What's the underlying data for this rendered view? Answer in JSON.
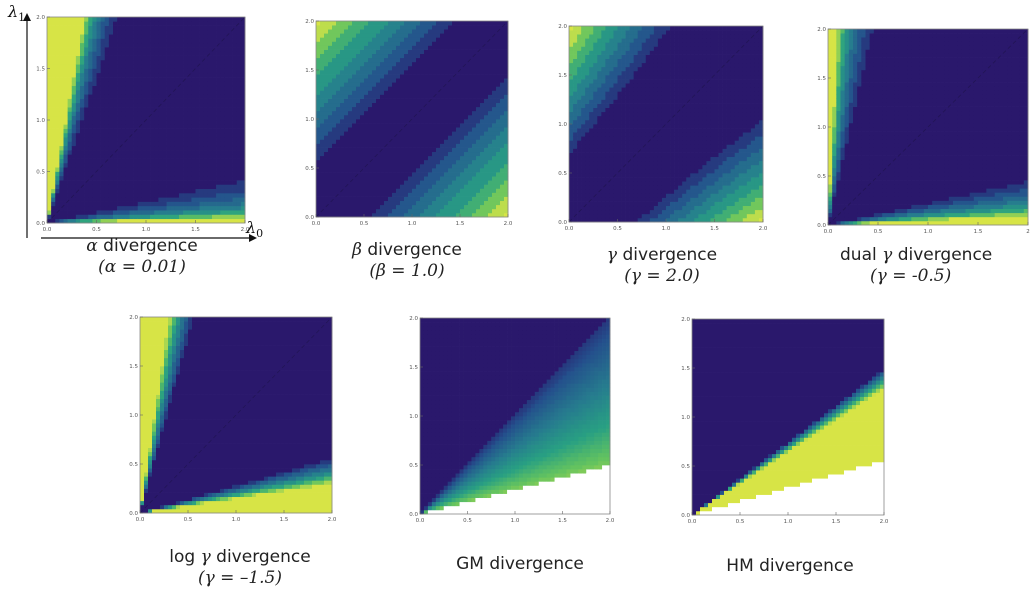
{
  "chart_data": [
    {
      "type": "heatmap",
      "kind": "alpha",
      "title_symbol": "α",
      "title_text": "divergence",
      "param_text": "(α = 0.01)",
      "x_ticks": [
        "0.0",
        "0.5",
        "1.0",
        "1.5",
        "2.0"
      ],
      "y_ticks": [
        "0.0",
        "0.5",
        "1.0",
        "1.5",
        "2.0"
      ],
      "xlim": [
        0,
        2
      ],
      "ylim": [
        0,
        2
      ],
      "xlabel": "λ0",
      "ylabel": "λ1",
      "colormap": "viridis"
    },
    {
      "type": "heatmap",
      "kind": "beta",
      "title_symbol": "β",
      "title_text": "divergence",
      "param_text": "(β = 1.0)",
      "x_ticks": [
        "0.0",
        "0.5",
        "1.0",
        "1.5",
        "2.0"
      ],
      "y_ticks": [
        "0.0",
        "0.5",
        "1.0",
        "1.5",
        "2.0"
      ],
      "xlim": [
        0,
        2
      ],
      "ylim": [
        0,
        2
      ],
      "colormap": "viridis"
    },
    {
      "type": "heatmap",
      "kind": "gamma",
      "title_symbol": "γ",
      "title_text": "divergence",
      "param_text": "(γ = 2.0)",
      "x_ticks": [
        "0.0",
        "0.5",
        "1.0",
        "1.5",
        "2.0"
      ],
      "y_ticks": [
        "0.0",
        "0.5",
        "1.0",
        "1.5",
        "2.0"
      ],
      "xlim": [
        0,
        2
      ],
      "ylim": [
        0,
        2
      ],
      "colormap": "viridis"
    },
    {
      "type": "heatmap",
      "kind": "dualgamma",
      "title_prefix": "dual",
      "title_symbol": "γ",
      "title_text": "divergence",
      "param_text": "(γ = -0.5)",
      "x_ticks": [
        "0.0",
        "0.5",
        "1.0",
        "1.5",
        "2"
      ],
      "y_ticks": [
        "0.0",
        "0.5",
        "1.0",
        "1.5",
        "2.0"
      ],
      "xlim": [
        0,
        2
      ],
      "ylim": [
        0,
        2
      ],
      "colormap": "viridis"
    },
    {
      "type": "heatmap",
      "kind": "loggamma",
      "title_prefix": "log",
      "title_symbol": "γ",
      "title_text": "divergence",
      "param_text": "(γ = –1.5)",
      "x_ticks": [
        "0.0",
        "0.5",
        "1.0",
        "1.5",
        "2.0"
      ],
      "y_ticks": [
        "0.0",
        "0.5",
        "1.0",
        "1.5",
        "2.0"
      ],
      "xlim": [
        0,
        2
      ],
      "ylim": [
        0,
        2
      ],
      "colormap": "viridis"
    },
    {
      "type": "heatmap",
      "kind": "gm",
      "title_text": "GM divergence",
      "x_ticks": [
        "0.0",
        "0.5",
        "1.0",
        "1.5",
        "2.0"
      ],
      "y_ticks": [
        "0.0",
        "0.5",
        "1.0",
        "1.5",
        "2.0"
      ],
      "xlim": [
        0,
        2
      ],
      "ylim": [
        0,
        2
      ],
      "colormap": "viridis"
    },
    {
      "type": "heatmap",
      "kind": "hm",
      "title_text": "HM divergence",
      "x_ticks": [
        "0.0",
        "0.5",
        "1.0",
        "1.5",
        "2.0"
      ],
      "y_ticks": [
        "0.0",
        "0.5",
        "1.0",
        "1.5",
        "2.0"
      ],
      "xlim": [
        0,
        2
      ],
      "ylim": [
        0,
        2
      ],
      "colormap": "viridis"
    }
  ],
  "axis_labels": {
    "x_sym": "λ",
    "x_sub": "0",
    "y_sym": "λ",
    "y_sub": "1"
  }
}
